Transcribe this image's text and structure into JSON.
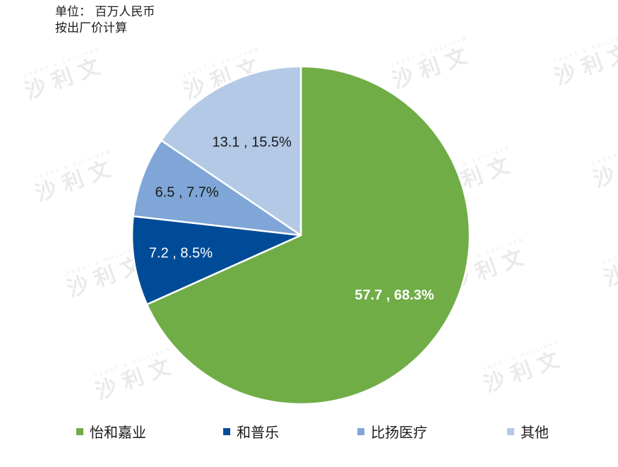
{
  "unit_note": {
    "line1": "单位： 百万人民币",
    "line2": "按出厂价计算"
  },
  "watermark": {
    "text": "沙利文",
    "subtext": "FROST & SULLIVAN"
  },
  "colors": {
    "slice_1": "#70ad47",
    "slice_2": "#004b97",
    "slice_3": "#7fa6d7",
    "slice_4": "#b4c9e6",
    "label_dark": "#1a1a1a",
    "label_light": "#ffffff",
    "separator": "#ffffff"
  },
  "chart_data": {
    "type": "pie",
    "categories": [
      "怡和嘉业",
      "和普乐",
      "比扬医疗",
      "其他"
    ],
    "values": [
      57.7,
      7.2,
      6.5,
      13.1
    ],
    "percentages": [
      "68.3%",
      "8.5%",
      "7.7%",
      "15.5%"
    ],
    "data_labels": [
      "57.7 , 68.3%",
      "7.2 , 8.5%",
      "6.5 , 7.7%",
      "13.1 , 15.5%"
    ],
    "start_angle": "12 o'clock",
    "direction": "clockwise",
    "legend_position": "bottom"
  }
}
